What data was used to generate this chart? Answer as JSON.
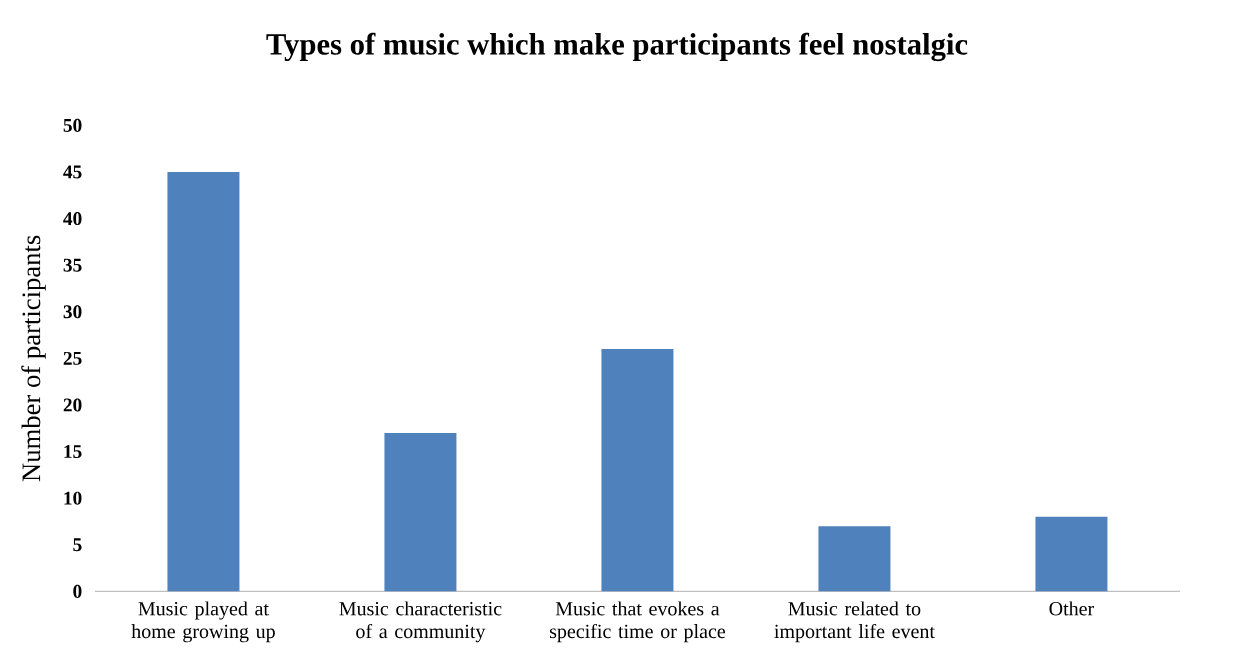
{
  "chart_data": {
    "type": "bar",
    "title": "Types of music which make participants feel nostalgic",
    "ylabel": "Number of participants",
    "categories": [
      "Music played at home growing up",
      "Music characteristic of a community",
      "Music that evokes a specific time or place",
      "Music related to important life event",
      "Other"
    ],
    "values": [
      45,
      17,
      26,
      7,
      8
    ],
    "color": "#4f81bd",
    "ylim": [
      0,
      50
    ],
    "yticks": [
      0,
      5,
      10,
      15,
      20,
      25,
      30,
      35,
      40,
      45,
      50
    ],
    "grid": false
  }
}
